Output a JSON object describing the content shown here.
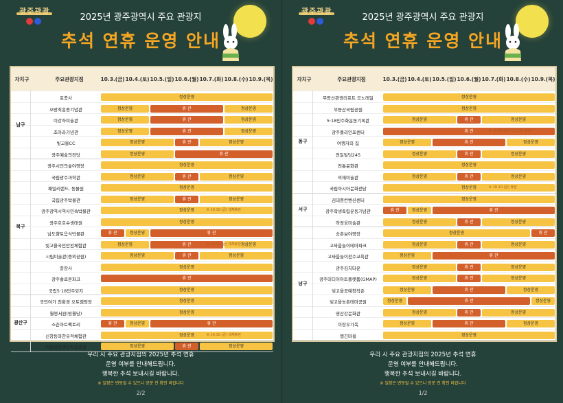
{
  "left": {
    "subtitle": "2025년 광주광역시 주요 관광지",
    "title": "추석 연휴 운영 안내",
    "headers": [
      "자치구",
      "주요관광지점",
      "10.3.(금)",
      "10.4.(토)",
      "10.5.(일)",
      "10.6.(월)",
      "10.7.(화)",
      "10.8.(수)",
      "10.9.(목)"
    ],
    "rows": [
      {
        "site": "포충사",
        "bars": [
          {
            "s": 0,
            "e": 7,
            "t": "op",
            "label": "정상운영"
          }
        ]
      },
      {
        "site": "오방최흥종기념관",
        "bars": [
          {
            "s": 0,
            "e": 2,
            "t": "op",
            "label": "정상운영"
          },
          {
            "s": 2,
            "e": 5,
            "t": "cl",
            "label": "휴 관"
          },
          {
            "s": 5,
            "e": 7,
            "t": "op",
            "label": "정상운영"
          }
        ]
      },
      {
        "site": "이강하미술관",
        "bars": [
          {
            "s": 0,
            "e": 2,
            "t": "op",
            "label": "정상운영"
          },
          {
            "s": 2,
            "e": 5,
            "t": "cl",
            "label": "휴 관"
          },
          {
            "s": 5,
            "e": 7,
            "t": "op",
            "label": "정상운영"
          }
        ]
      },
      {
        "site": "조아라기념관",
        "bars": [
          {
            "s": 0,
            "e": 2,
            "t": "op",
            "label": "정상운영"
          },
          {
            "s": 2,
            "e": 5,
            "t": "cl",
            "label": "휴 관"
          },
          {
            "s": 5,
            "e": 7,
            "t": "op",
            "label": "정상운영"
          }
        ]
      },
      {
        "site": "빛고을CC",
        "bars": [
          {
            "s": 0,
            "e": 3,
            "t": "op",
            "label": "정상운영"
          },
          {
            "s": 3,
            "e": 4,
            "t": "cl",
            "label": "휴 관"
          },
          {
            "s": 4,
            "e": 7,
            "t": "op",
            "label": "정상운영"
          }
        ]
      },
      {
        "site": "광주예술의전당",
        "bars": [
          {
            "s": 0,
            "e": 3,
            "t": "op",
            "label": "정상운영"
          },
          {
            "s": 3,
            "e": 7,
            "t": "cl",
            "label": "휴 관"
          }
        ]
      },
      {
        "site": "광주시민의숲야영장",
        "bars": [
          {
            "s": 0,
            "e": 7,
            "t": "op",
            "label": "정상운영"
          }
        ]
      },
      {
        "site": "국립광주과학관",
        "bars": [
          {
            "s": 0,
            "e": 3,
            "t": "op",
            "label": "정상운영"
          },
          {
            "s": 3,
            "e": 4,
            "t": "cl",
            "label": "휴 관"
          },
          {
            "s": 4,
            "e": 7,
            "t": "op",
            "label": "정상운영"
          }
        ]
      },
      {
        "site": "패밀리랜드, 동물원",
        "bars": [
          {
            "s": 0,
            "e": 7,
            "t": "op",
            "label": "정상운영"
          }
        ]
      },
      {
        "site": "국립광주박물관",
        "bars": [
          {
            "s": 0,
            "e": 3,
            "t": "op",
            "label": "정상운영"
          },
          {
            "s": 3,
            "e": 4,
            "t": "cl",
            "label": "휴 관"
          },
          {
            "s": 4,
            "e": 7,
            "t": "op",
            "label": "정상운영"
          }
        ]
      },
      {
        "site": "광주광역시역사민속박물관",
        "bars": [
          {
            "s": 0,
            "e": 7,
            "t": "op",
            "label": "정상운영"
          }
        ],
        "note": "※ 10.10.(금) 대체휴관"
      },
      {
        "site": "광주호호수생태원",
        "bars": [
          {
            "s": 0,
            "e": 7,
            "t": "op",
            "label": "정상운영"
          }
        ]
      },
      {
        "site": "남도향토음식박물관",
        "bars": [
          {
            "s": 0,
            "e": 1,
            "t": "cl",
            "label": "휴 관"
          },
          {
            "s": 1,
            "e": 2,
            "t": "op",
            "label": "정상운영"
          },
          {
            "s": 2,
            "e": 7,
            "t": "cl",
            "label": "휴 관"
          }
        ]
      },
      {
        "site": "빛고을국민안전체험관",
        "bars": [
          {
            "s": 0,
            "e": 2,
            "t": "op",
            "label": "정상운영"
          },
          {
            "s": 2,
            "e": 5,
            "t": "cl",
            "label": "휴 관"
          },
          {
            "s": 5,
            "e": 7,
            "t": "op",
            "label": "정상운영"
          }
        ],
        "note": "※ 10.10.(금) 대체휴관"
      },
      {
        "site": "시립미술관(중외공원)",
        "bars": [
          {
            "s": 0,
            "e": 3,
            "t": "op",
            "label": "정상운영"
          },
          {
            "s": 3,
            "e": 4,
            "t": "cl",
            "label": "휴 관"
          },
          {
            "s": 4,
            "e": 7,
            "t": "op",
            "label": "정상운영"
          }
        ]
      },
      {
        "site": "충장사",
        "bars": [
          {
            "s": 0,
            "e": 7,
            "t": "op",
            "label": "정상운영"
          }
        ]
      },
      {
        "site": "광주솔로몬파크",
        "bars": [
          {
            "s": 0,
            "e": 7,
            "t": "cl",
            "label": "휴 관"
          }
        ]
      },
      {
        "site": "국립5·18민주묘지",
        "bars": [
          {
            "s": 0,
            "e": 7,
            "t": "op",
            "label": "정상운영"
          }
        ]
      },
      {
        "site": "국민여가 친환경 오토캠핑장",
        "bars": [
          {
            "s": 0,
            "e": 7,
            "t": "op",
            "label": "정상운영"
          }
        ]
      },
      {
        "site": "월봉서원(빙월당)",
        "bars": [
          {
            "s": 0,
            "e": 7,
            "t": "op",
            "label": "정상운영"
          }
        ]
      },
      {
        "site": "소촌아트팩토리",
        "bars": [
          {
            "s": 0,
            "e": 1,
            "t": "cl",
            "label": "휴 관"
          },
          {
            "s": 1,
            "e": 2,
            "t": "op",
            "label": "정상운영"
          },
          {
            "s": 2,
            "e": 7,
            "t": "cl",
            "label": "휴 관"
          }
        ]
      },
      {
        "site": "신창동마한유적체험관",
        "bars": [
          {
            "s": 0,
            "e": 7,
            "t": "op",
            "label": "정상운영"
          }
        ],
        "note": "※ 10.10.(금) 대체휴관"
      },
      {
        "site": "어등산관광단지골프장",
        "bars": [
          {
            "s": 0,
            "e": 3,
            "t": "op",
            "label": "정상운영"
          },
          {
            "s": 3,
            "e": 4,
            "t": "cl",
            "label": "휴 관"
          },
          {
            "s": 4,
            "e": 7,
            "t": "op",
            "label": "정상운영"
          }
        ]
      }
    ],
    "districts": [
      {
        "name": "남구",
        "from": 0,
        "to": 6
      },
      {
        "name": "북구",
        "from": 6,
        "to": 18
      },
      {
        "name": "광산구",
        "from": 18,
        "to": 23
      }
    ],
    "footer": [
      "우리 시 주요 관광지점의 2025년 추석 연휴",
      "운영 여부를 안내해드립니다.",
      "행복한 추석 보내시길 바랍니다."
    ],
    "warn": "※ 일정은 변동될 수 있으니 방문 전 확인 바랍니다",
    "page": "2/2"
  },
  "right": {
    "subtitle": "2025년 광주광역시 주요 관광지",
    "title": "추석 연휴 운영 안내",
    "headers": [
      "자치구",
      "주요관광지점",
      "10.3.(금)",
      "10.4.(토)",
      "10.5.(일)",
      "10.6.(월)",
      "10.7.(화)",
      "10.8.(수)",
      "10.9.(목)"
    ],
    "rows": [
      {
        "site": "무등산관광리프트 모노레일",
        "bars": [
          {
            "s": 0,
            "e": 7,
            "t": "op",
            "label": "정상운영"
          }
        ]
      },
      {
        "site": "무등산국립공원",
        "bars": [
          {
            "s": 0,
            "e": 7,
            "t": "op",
            "label": "정상운영"
          }
        ]
      },
      {
        "site": "5·18민주화운동기록관",
        "bars": [
          {
            "s": 0,
            "e": 3,
            "t": "op",
            "label": "정상운영"
          },
          {
            "s": 3,
            "e": 4,
            "t": "cl",
            "label": "휴 관"
          },
          {
            "s": 4,
            "e": 7,
            "t": "op",
            "label": "정상운영"
          }
        ]
      },
      {
        "site": "광주폴리인포센터",
        "bars": [
          {
            "s": 0,
            "e": 7,
            "t": "cl",
            "label": "휴 관"
          }
        ],
        "note": "※ 10.10.(금)~12.(일) 휴관"
      },
      {
        "site": "여행자의 집",
        "bars": [
          {
            "s": 0,
            "e": 2,
            "t": "op",
            "label": "정상운영"
          },
          {
            "s": 2,
            "e": 5,
            "t": "cl",
            "label": "휴 관"
          },
          {
            "s": 5,
            "e": 7,
            "t": "op",
            "label": "정상운영"
          }
        ]
      },
      {
        "site": "전일빌딩245",
        "bars": [
          {
            "s": 0,
            "e": 3,
            "t": "op",
            "label": "정상운영"
          },
          {
            "s": 3,
            "e": 4,
            "t": "cl",
            "label": "휴 관"
          },
          {
            "s": 4,
            "e": 7,
            "t": "op",
            "label": "정상운영"
          }
        ]
      },
      {
        "site": "전통문화관",
        "bars": [
          {
            "s": 0,
            "e": 7,
            "t": "op",
            "label": "정상운영"
          }
        ]
      },
      {
        "site": "의재미술관",
        "bars": [
          {
            "s": 0,
            "e": 3,
            "t": "op",
            "label": "정상운영"
          },
          {
            "s": 3,
            "e": 4,
            "t": "cl",
            "label": "휴 관"
          },
          {
            "s": 4,
            "e": 7,
            "t": "op",
            "label": "정상운영"
          }
        ]
      },
      {
        "site": "국립아시아문화전당",
        "bars": [
          {
            "s": 0,
            "e": 7,
            "t": "op",
            "label": "정상운영"
          }
        ],
        "note": "※ 10.10.(금) 휴관"
      },
      {
        "site": "김대중컨벤션센터",
        "bars": [
          {
            "s": 0,
            "e": 7,
            "t": "op",
            "label": "정상운영"
          }
        ]
      },
      {
        "site": "광주학생독립운동기념관",
        "bars": [
          {
            "s": 0,
            "e": 1,
            "t": "cl",
            "label": "휴 관"
          },
          {
            "s": 1,
            "e": 2,
            "t": "op",
            "label": "정상운영"
          },
          {
            "s": 2,
            "e": 7,
            "t": "cl",
            "label": "휴 관"
          }
        ]
      },
      {
        "site": "하정웅미술관",
        "bars": [
          {
            "s": 0,
            "e": 3,
            "t": "op",
            "label": "정상운영"
          },
          {
            "s": 3,
            "e": 4,
            "t": "cl",
            "label": "휴 관"
          },
          {
            "s": 4,
            "e": 7,
            "t": "op",
            "label": "정상운영"
          }
        ]
      },
      {
        "site": "승촌보야영장",
        "bars": [
          {
            "s": 0,
            "e": 6,
            "t": "op",
            "label": "정상운영"
          },
          {
            "s": 6,
            "e": 7,
            "t": "cl",
            "label": "휴 관"
          }
        ]
      },
      {
        "site": "고싸움놀이테마파크",
        "bars": [
          {
            "s": 0,
            "e": 3,
            "t": "op",
            "label": "정상운영"
          },
          {
            "s": 3,
            "e": 4,
            "t": "cl",
            "label": "휴 관"
          },
          {
            "s": 4,
            "e": 7,
            "t": "op",
            "label": "정상운영"
          }
        ]
      },
      {
        "site": "고싸움놀이전수교육관",
        "bars": [
          {
            "s": 0,
            "e": 2,
            "t": "op",
            "label": "정상운영"
          },
          {
            "s": 2,
            "e": 7,
            "t": "cl",
            "label": "휴 관"
          }
        ]
      },
      {
        "site": "광주김치타운",
        "bars": [
          {
            "s": 0,
            "e": 3,
            "t": "op",
            "label": "정상운영"
          },
          {
            "s": 3,
            "e": 4,
            "t": "cl",
            "label": "휴 관"
          },
          {
            "s": 4,
            "e": 7,
            "t": "op",
            "label": "정상운영"
          }
        ]
      },
      {
        "site": "광주미디어아트플랫폼(GMAP)",
        "bars": [
          {
            "s": 0,
            "e": 3,
            "t": "op",
            "label": "정상운영"
          },
          {
            "s": 3,
            "e": 4,
            "t": "cl",
            "label": "휴 관"
          },
          {
            "s": 4,
            "e": 7,
            "t": "op",
            "label": "정상운영"
          }
        ]
      },
      {
        "site": "빛고을공예창작촌",
        "bars": [
          {
            "s": 0,
            "e": 2,
            "t": "op",
            "label": "정상운영"
          },
          {
            "s": 2,
            "e": 5,
            "t": "cl",
            "label": "휴 관"
          },
          {
            "s": 5,
            "e": 7,
            "t": "op",
            "label": "정상운영"
          }
        ]
      },
      {
        "site": "빛고을농촌테마공원",
        "bars": [
          {
            "s": 0,
            "e": 1,
            "t": "op",
            "label": "정상운영"
          },
          {
            "s": 1,
            "e": 6,
            "t": "cl",
            "label": "휴 관"
          },
          {
            "s": 6,
            "e": 7,
            "t": "op",
            "label": "정상운영"
          }
        ]
      },
      {
        "site": "영산강문화관",
        "bars": [
          {
            "s": 0,
            "e": 3,
            "t": "op",
            "label": "정상운영"
          },
          {
            "s": 3,
            "e": 4,
            "t": "cl",
            "label": "휴 관"
          },
          {
            "s": 4,
            "e": 7,
            "t": "op",
            "label": "정상운영"
          }
        ]
      },
      {
        "site": "이장우가옥",
        "bars": [
          {
            "s": 0,
            "e": 2,
            "t": "op",
            "label": "정상운영"
          },
          {
            "s": 2,
            "e": 5,
            "t": "cl",
            "label": "휴 관"
          },
          {
            "s": 5,
            "e": 7,
            "t": "op",
            "label": "정상운영"
          }
        ]
      },
      {
        "site": "헹긴마을",
        "bars": [
          {
            "s": 0,
            "e": 7,
            "t": "op",
            "label": "정상운영"
          }
        ]
      }
    ],
    "districts": [
      {
        "name": "동구",
        "from": 0,
        "to": 9
      },
      {
        "name": "서구",
        "from": 9,
        "to": 12
      },
      {
        "name": "남구",
        "from": 12,
        "to": 22
      }
    ],
    "footer": [
      "우리 시 주요 관광지점의 2025년 추석 연휴",
      "운영 여부를 안내해드립니다.",
      "행복한 추석 보내시길 바랍니다."
    ],
    "warn": "※ 일정은 변동될 수 있으니 방문 전 확인 바랍니다",
    "page": "1/2"
  },
  "colors": {
    "open": "#f6c343",
    "closed": "#d35f2a",
    "title": "#f5a623",
    "bg": "#24413a"
  },
  "logo_text": "광주관광"
}
